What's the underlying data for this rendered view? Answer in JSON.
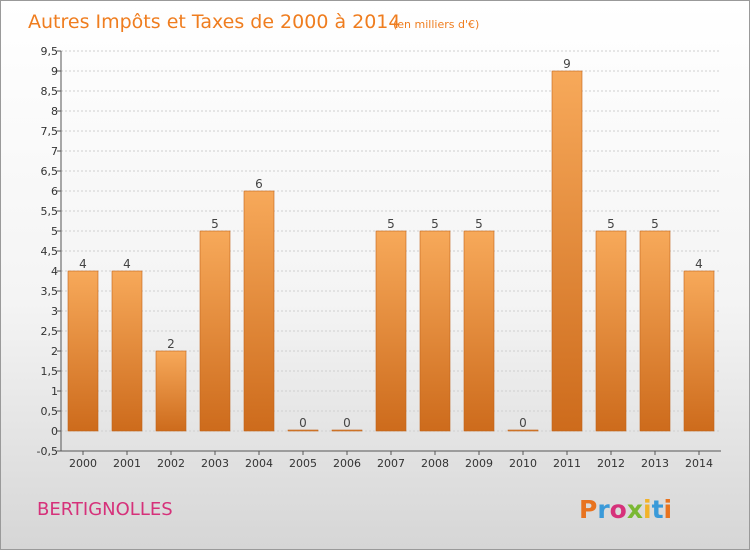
{
  "header": {
    "title": "Autres Impôts et Taxes de 2000 à 2014",
    "unit": "(en milliers d'€)"
  },
  "footer": {
    "commune": "BERTIGNOLLES",
    "brand": "Proxiti",
    "brand_colors": [
      "#e8731f",
      "#3a9ad9",
      "#d6317a",
      "#7ab833",
      "#f2b32a",
      "#3a9ad9",
      "#e8731f"
    ]
  },
  "colors": {
    "bar_top": "#f7a95a",
    "bar_bottom": "#cd6b1c",
    "grid": "#cfcfcf",
    "axis": "#555555"
  },
  "chart_data": {
    "type": "bar",
    "categories": [
      "2000",
      "2001",
      "2002",
      "2003",
      "2004",
      "2005",
      "2006",
      "2007",
      "2008",
      "2009",
      "2010",
      "2011",
      "2012",
      "2013",
      "2014"
    ],
    "values": [
      4,
      4,
      2,
      5,
      6,
      0,
      0,
      5,
      5,
      5,
      0,
      9,
      5,
      5,
      4
    ],
    "value_labels": [
      "4",
      "4",
      "2",
      "5",
      "6",
      "0",
      "0",
      "5",
      "5",
      "5",
      "0",
      "9",
      "5",
      "5",
      "4"
    ],
    "y_ticks": [
      "-0,5",
      "0",
      "0,5",
      "1",
      "1,5",
      "2",
      "2,5",
      "3",
      "3,5",
      "4",
      "4,5",
      "5",
      "5,5",
      "6",
      "6,5",
      "7",
      "7,5",
      "8",
      "8,5",
      "9",
      "9,5"
    ],
    "ylim": [
      -0.5,
      9.5
    ],
    "grid": true,
    "legend": false
  }
}
